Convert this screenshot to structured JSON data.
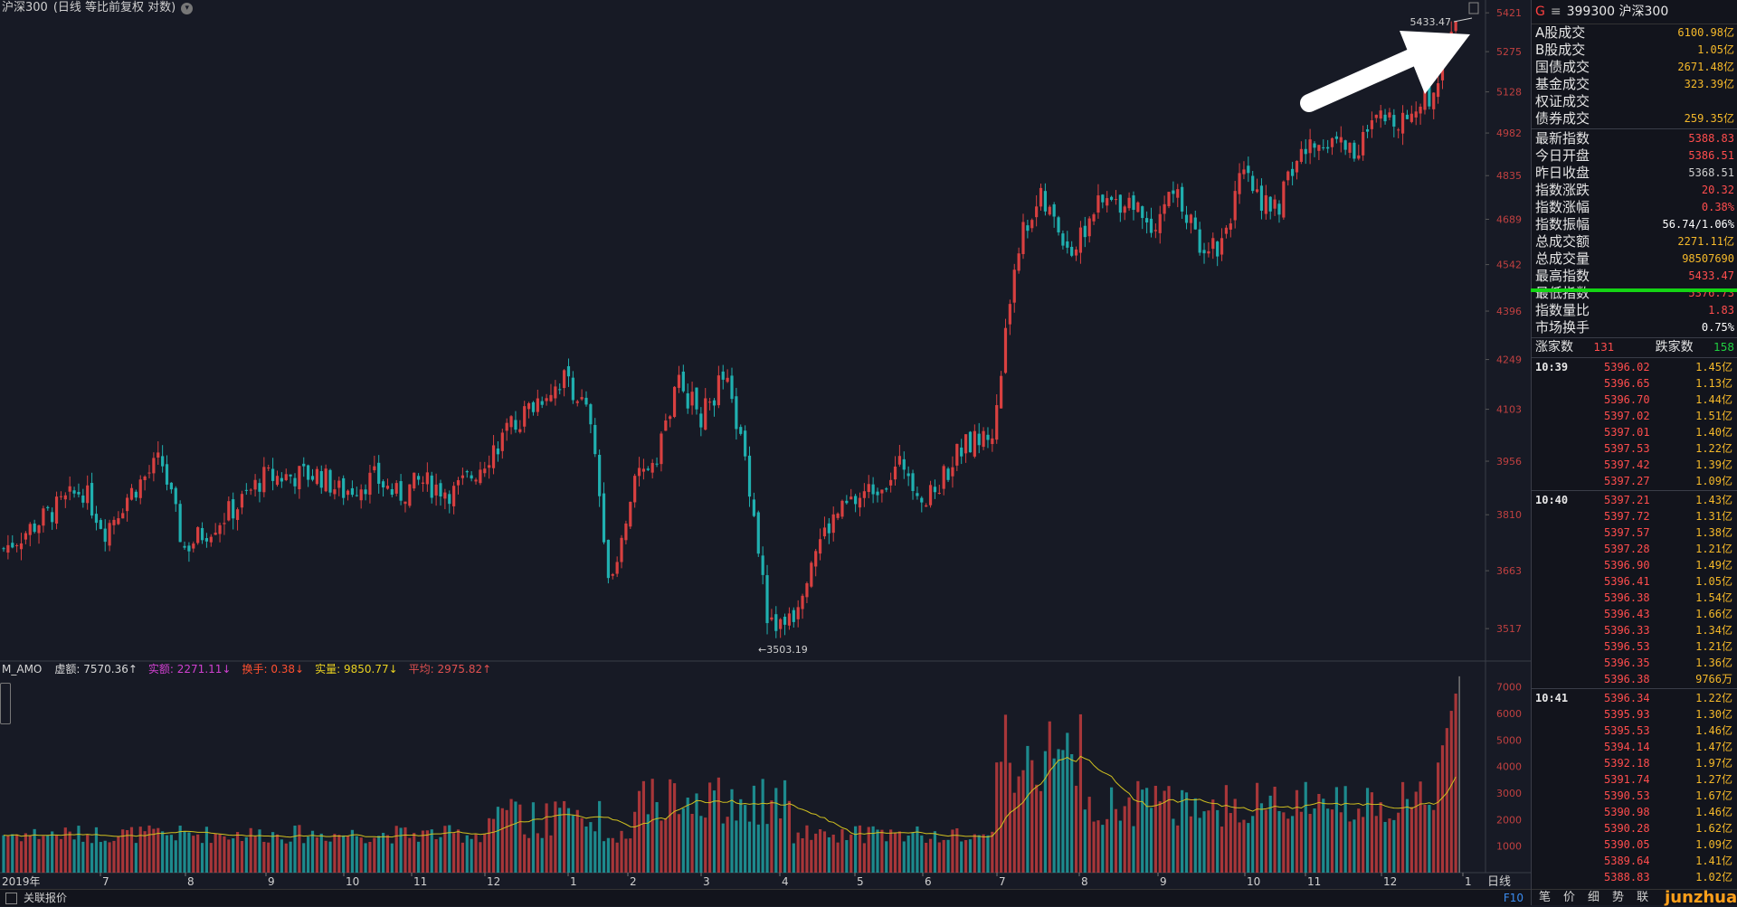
{
  "title": {
    "symbol": "沪深300",
    "mode": "(日线 等比前复权 对数)"
  },
  "annotations": {
    "high": "5433.47",
    "low": "3503.19"
  },
  "y_labels": [
    "5421",
    "5275",
    "5128",
    "4982",
    "4835",
    "4689",
    "4542",
    "4396",
    "4249",
    "4103",
    "3956",
    "3810",
    "3663",
    "3517"
  ],
  "vol_labels": [
    "7000",
    "6000",
    "5000",
    "4000",
    "3000",
    "2000",
    "1000"
  ],
  "x_labels": [
    "2019年",
    "7",
    "8",
    "9",
    "10",
    "11",
    "12",
    "1",
    "2",
    "3",
    "4",
    "5",
    "6",
    "7",
    "8",
    "9",
    "10",
    "11",
    "12",
    "1"
  ],
  "period": "日线",
  "indicator": {
    "name": "M_AMO",
    "items": [
      {
        "label": "虚额:",
        "value": "7570.36",
        "dir": "↑",
        "color": "#d8d8d8"
      },
      {
        "label": "实额:",
        "value": "2271.11",
        "dir": "↓",
        "color": "#d040d0"
      },
      {
        "label": "换手:",
        "value": "0.38",
        "dir": "↓",
        "color": "#ff5030"
      },
      {
        "label": "实量:",
        "value": "9850.77",
        "dir": "↓",
        "color": "#e8d020"
      },
      {
        "label": "平均:",
        "value": "2975.82",
        "dir": "↑",
        "color": "#e05050"
      }
    ]
  },
  "bottom": {
    "label": "关联报价",
    "f10": "F10"
  },
  "panel": {
    "code": "399300",
    "name": "沪深300",
    "g_label": "G",
    "menu_icon": "≡",
    "stats1": [
      {
        "k": "A股成交",
        "v": "6100.98亿",
        "c": "#f5b92a"
      },
      {
        "k": "B股成交",
        "v": "1.05亿",
        "c": "#f5b92a"
      },
      {
        "k": "国债成交",
        "v": "2671.48亿",
        "c": "#f5b92a"
      },
      {
        "k": "基金成交",
        "v": "323.39亿",
        "c": "#f5b92a"
      },
      {
        "k": "权证成交",
        "v": "",
        "c": "#f5b92a"
      },
      {
        "k": "债券成交",
        "v": "259.35亿",
        "c": "#f5b92a"
      }
    ],
    "stats2": [
      {
        "k": "最新指数",
        "v": "5388.83",
        "c": "#ff4d4d"
      },
      {
        "k": "今日开盘",
        "v": "5386.51",
        "c": "#ff4d4d"
      },
      {
        "k": "昨日收盘",
        "v": "5368.51",
        "c": "#cfcfcf"
      },
      {
        "k": "指数涨跌",
        "v": "20.32",
        "c": "#ff4d4d"
      },
      {
        "k": "指数涨幅",
        "v": "0.38%",
        "c": "#ff4d4d"
      },
      {
        "k": "指数振幅",
        "v": "56.74/1.06%",
        "c": "#ffffff"
      },
      {
        "k": "总成交额",
        "v": "2271.11亿",
        "c": "#f5b92a"
      },
      {
        "k": "总成交量",
        "v": "98507690",
        "c": "#f5b92a"
      },
      {
        "k": "最高指数",
        "v": "5433.47",
        "c": "#ff4d4d"
      },
      {
        "k": "最低指数",
        "v": "5376.73",
        "c": "#ff4d4d"
      },
      {
        "k": "指数量比",
        "v": "1.83",
        "c": "#ff4d4d"
      },
      {
        "k": "市场换手",
        "v": "0.75%",
        "c": "#ffffff"
      }
    ],
    "breadth": {
      "up_label": "涨家数",
      "up": "131",
      "down_label": "跌家数",
      "down": "158"
    },
    "ticks": [
      {
        "t": "10:39",
        "p": "5396.02",
        "a": "1.45亿"
      },
      {
        "t": "",
        "p": "5396.65",
        "a": "1.13亿"
      },
      {
        "t": "",
        "p": "5396.70",
        "a": "1.44亿"
      },
      {
        "t": "",
        "p": "5397.02",
        "a": "1.51亿"
      },
      {
        "t": "",
        "p": "5397.01",
        "a": "1.40亿"
      },
      {
        "t": "",
        "p": "5397.53",
        "a": "1.22亿"
      },
      {
        "t": "",
        "p": "5397.42",
        "a": "1.39亿"
      },
      {
        "t": "",
        "p": "5397.27",
        "a": "1.09亿"
      },
      {
        "t": "10:40",
        "p": "5397.21",
        "a": "1.43亿"
      },
      {
        "t": "",
        "p": "5397.72",
        "a": "1.31亿"
      },
      {
        "t": "",
        "p": "5397.57",
        "a": "1.38亿"
      },
      {
        "t": "",
        "p": "5397.28",
        "a": "1.21亿"
      },
      {
        "t": "",
        "p": "5396.90",
        "a": "1.49亿"
      },
      {
        "t": "",
        "p": "5396.41",
        "a": "1.05亿"
      },
      {
        "t": "",
        "p": "5396.38",
        "a": "1.54亿"
      },
      {
        "t": "",
        "p": "5396.43",
        "a": "1.66亿"
      },
      {
        "t": "",
        "p": "5396.33",
        "a": "1.34亿"
      },
      {
        "t": "",
        "p": "5396.53",
        "a": "1.21亿"
      },
      {
        "t": "",
        "p": "5396.35",
        "a": "1.36亿"
      },
      {
        "t": "",
        "p": "5396.38",
        "a": "9766万"
      },
      {
        "t": "10:41",
        "p": "5396.34",
        "a": "1.22亿"
      },
      {
        "t": "",
        "p": "5395.93",
        "a": "1.30亿"
      },
      {
        "t": "",
        "p": "5395.53",
        "a": "1.46亿"
      },
      {
        "t": "",
        "p": "5394.14",
        "a": "1.47亿"
      },
      {
        "t": "",
        "p": "5392.18",
        "a": "1.97亿"
      },
      {
        "t": "",
        "p": "5391.74",
        "a": "1.27亿"
      },
      {
        "t": "",
        "p": "5390.53",
        "a": "1.67亿"
      },
      {
        "t": "",
        "p": "5390.98",
        "a": "1.46亿"
      },
      {
        "t": "",
        "p": "5390.28",
        "a": "1.62亿"
      },
      {
        "t": "",
        "p": "5390.05",
        "a": "1.09亿"
      },
      {
        "t": "",
        "p": "5389.64",
        "a": "1.41亿"
      },
      {
        "t": "",
        "p": "5388.83",
        "a": "1.02亿"
      }
    ],
    "footer": [
      "笔",
      "价",
      "细",
      "势",
      "联"
    ],
    "watermark": "junzhuan.com"
  },
  "chart_data": {
    "type": "candlestick",
    "up_color": "#d84040",
    "down_color": "#20b0b0",
    "ylim": [
      3440,
      5470
    ],
    "y_scale": "log",
    "vol_ylim": [
      0,
      7500
    ],
    "path": [
      [
        0,
        3720
      ],
      [
        7,
        3880
      ],
      [
        9,
        3770
      ],
      [
        11,
        3860
      ],
      [
        14,
        3960
      ],
      [
        16,
        3720
      ],
      [
        21,
        3840
      ],
      [
        23,
        3910
      ],
      [
        28,
        3920
      ],
      [
        30,
        3870
      ],
      [
        33,
        3910
      ],
      [
        35,
        3860
      ],
      [
        37,
        3900
      ],
      [
        40,
        3870
      ],
      [
        42,
        3930
      ],
      [
        44,
        4010
      ],
      [
        48,
        4150
      ],
      [
        50,
        4200
      ],
      [
        52,
        4080
      ],
      [
        54,
        3610
      ],
      [
        56,
        3880
      ],
      [
        58,
        3980
      ],
      [
        60,
        4180
      ],
      [
        62,
        4080
      ],
      [
        64,
        4200
      ],
      [
        66,
        3950
      ],
      [
        68,
        3520
      ],
      [
        70,
        3540
      ],
      [
        72,
        3720
      ],
      [
        74,
        3810
      ],
      [
        78,
        3900
      ],
      [
        80,
        3950
      ],
      [
        82,
        3840
      ],
      [
        85,
        3990
      ],
      [
        88,
        4040
      ],
      [
        90,
        4600
      ],
      [
        92,
        4760
      ],
      [
        95,
        4580
      ],
      [
        97,
        4730
      ],
      [
        100,
        4760
      ],
      [
        102,
        4670
      ],
      [
        104,
        4790
      ],
      [
        106,
        4620
      ],
      [
        108,
        4600
      ],
      [
        110,
        4830
      ],
      [
        113,
        4710
      ],
      [
        115,
        4900
      ],
      [
        118,
        4970
      ],
      [
        120,
        4920
      ],
      [
        122,
        5020
      ],
      [
        125,
        5050
      ],
      [
        127,
        5130
      ],
      [
        129,
        5420
      ]
    ]
  }
}
